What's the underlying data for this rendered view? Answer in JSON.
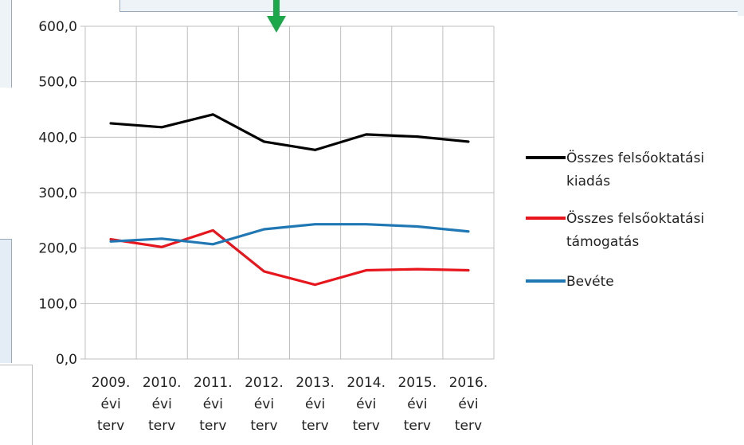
{
  "colors": {
    "series_black": "#000000",
    "series_red": "#e8161c",
    "series_blue": "#1f77b4",
    "arrow": "#1aa84a",
    "grid": "#bfbfbf",
    "axis_text": "#222222"
  },
  "decorations": {
    "arrow_icon": "down-arrow"
  },
  "chart_data": {
    "type": "line",
    "categories": [
      [
        "2009.",
        "évi",
        "terv"
      ],
      [
        "2010.",
        "évi",
        "terv"
      ],
      [
        "2011.",
        "évi",
        "terv"
      ],
      [
        "2012.",
        "évi",
        "terv"
      ],
      [
        "2013.",
        "évi",
        "terv"
      ],
      [
        "2014.",
        "évi",
        "terv"
      ],
      [
        "2015.",
        "évi",
        "terv"
      ],
      [
        "2016.",
        "évi",
        "terv"
      ]
    ],
    "yticks": [
      "0,0",
      "100,0",
      "200,0",
      "300,0",
      "400,0",
      "500,0",
      "600,0"
    ],
    "ylim": [
      0,
      600
    ],
    "grid": true,
    "legend_position": "right",
    "series": [
      {
        "name_lines": [
          "Összes felsőoktatási",
          "kiadás"
        ],
        "color": "#000000",
        "values": [
          425,
          418,
          441,
          392,
          377,
          405,
          401,
          392
        ]
      },
      {
        "name_lines": [
          "Összes felsőoktatási",
          "támogatás"
        ],
        "color": "#e8161c",
        "values": [
          216,
          202,
          232,
          158,
          134,
          160,
          162,
          160
        ]
      },
      {
        "name_lines": [
          "Bevéte"
        ],
        "color": "#1f77b4",
        "values": [
          212,
          217,
          207,
          234,
          243,
          243,
          239,
          230
        ]
      }
    ]
  }
}
